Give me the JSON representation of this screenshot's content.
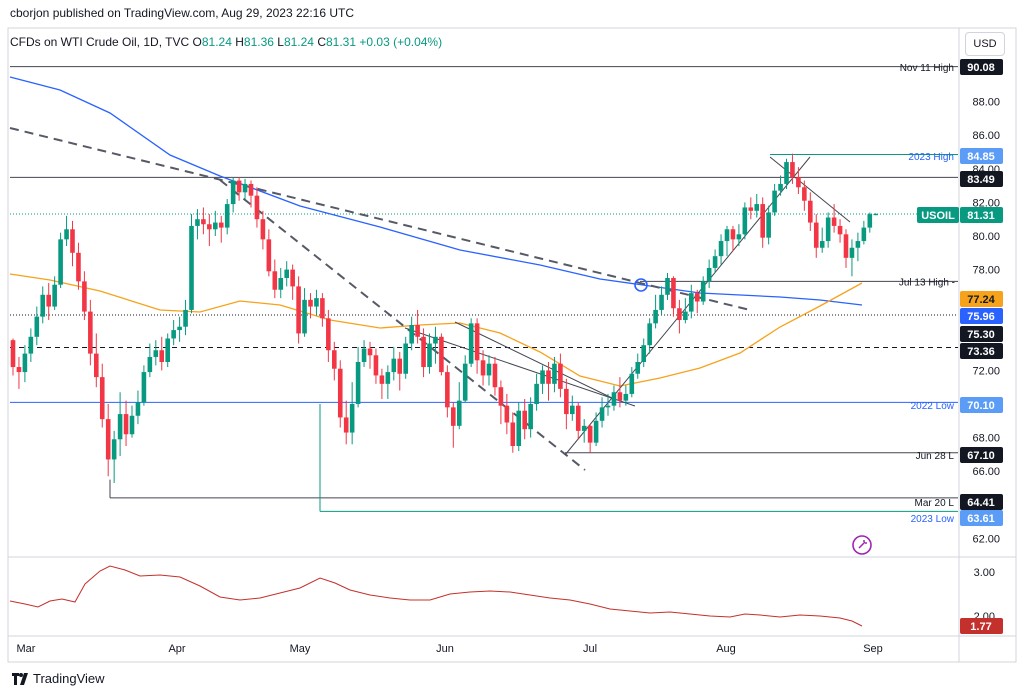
{
  "header": {
    "published": "cborjon published on TradingView.com, Aug 29, 2023 22:16 UTC",
    "symbol": "CFDs on WTI Crude Oil, 1D, TVC",
    "o_label": "O",
    "o_value": "81.24",
    "h_label": "H",
    "h_value": "81.36",
    "l_label": "L",
    "l_value": "81.24",
    "c_label": "C",
    "c_value": "81.31",
    "change": "+0.03 (+0.04%)",
    "currency": "USD"
  },
  "brand": {
    "name": "TradingView",
    "icon": "tradingview-logo-icon"
  },
  "colors": {
    "up": "#089981",
    "down": "#f23645",
    "sma200": "#2962ff",
    "sma50": "#f7a21b",
    "lower_indicator": "#c4302b",
    "trendline_dashed": "#555a66",
    "hline": "#434651"
  },
  "chart_data": {
    "type": "candlestick",
    "symbol": "USOIL",
    "x_months": [
      "Mar",
      "Apr",
      "May",
      "Jun",
      "Jul",
      "Aug",
      "Sep"
    ],
    "y_ticks": [
      "88.00",
      "86.00",
      "84.00",
      "82.00",
      "80.00",
      "78.00",
      "72.00",
      "68.00",
      "66.00",
      "62.00"
    ],
    "ylim": [
      61,
      91.5
    ],
    "last_price": "81.31",
    "price_badges": [
      {
        "value": "90.08",
        "label": "Nov 11 High",
        "kind": "level"
      },
      {
        "value": "84.85",
        "label": "2023 High",
        "kind": "blue"
      },
      {
        "value": "83.49",
        "label": "",
        "kind": "level"
      },
      {
        "value": "81.31",
        "label": "USOIL",
        "kind": "last"
      },
      {
        "value": "77.24",
        "label": "",
        "kind": "sma50"
      },
      {
        "value": "75.96",
        "label": "",
        "kind": "sma200"
      },
      {
        "value": "75.30",
        "label": "",
        "kind": "level"
      },
      {
        "value": "73.36",
        "label": "",
        "kind": "level"
      },
      {
        "value": "70.10",
        "label": "2022 Low",
        "kind": "blue"
      },
      {
        "value": "67.10",
        "label": "Jun 28 L",
        "kind": "level"
      },
      {
        "value": "64.41",
        "label": "Mar 20 L",
        "kind": "level"
      },
      {
        "value": "63.61",
        "label": "2023 Low",
        "kind": "blue"
      }
    ],
    "annotations": [
      {
        "label": "Jul 13 High -",
        "value": 77.3
      }
    ],
    "lower_indicator": {
      "ticks": [
        "3.00",
        "2.00"
      ],
      "last": "1.77"
    },
    "candles": [
      [
        73.8,
        72.2,
        73.9,
        71.7
      ],
      [
        72.2,
        71.9,
        72.8,
        70.9
      ],
      [
        71.9,
        73.0,
        73.5,
        71.3
      ],
      [
        73.0,
        74.0,
        74.5,
        72.5
      ],
      [
        74.0,
        75.2,
        75.8,
        73.5
      ],
      [
        75.2,
        76.5,
        77.0,
        74.8
      ],
      [
        76.5,
        75.8,
        77.2,
        75.0
      ],
      [
        75.8,
        77.1,
        77.6,
        75.6
      ],
      [
        77.1,
        79.8,
        80.2,
        76.9
      ],
      [
        79.8,
        80.4,
        81.2,
        79.4
      ],
      [
        80.4,
        79.0,
        80.9,
        78.2
      ],
      [
        79.0,
        77.3,
        79.6,
        76.8
      ],
      [
        77.3,
        75.5,
        77.9,
        75.0
      ],
      [
        75.5,
        73.0,
        76.2,
        72.3
      ],
      [
        73.0,
        71.6,
        74.2,
        71.0
      ],
      [
        71.6,
        69.1,
        72.4,
        68.6
      ],
      [
        69.1,
        66.7,
        70.0,
        65.7
      ],
      [
        66.7,
        67.9,
        68.4,
        65.3
      ],
      [
        67.9,
        69.4,
        70.7,
        66.9
      ],
      [
        69.4,
        68.2,
        70.2,
        67.5
      ],
      [
        68.2,
        69.3,
        69.9,
        68.0
      ],
      [
        69.3,
        70.1,
        70.8,
        68.8
      ],
      [
        70.1,
        71.9,
        72.3,
        69.9
      ],
      [
        71.9,
        72.8,
        73.6,
        71.6
      ],
      [
        72.8,
        73.2,
        73.8,
        72.3
      ],
      [
        73.2,
        72.5,
        74.0,
        72.0
      ],
      [
        72.5,
        73.9,
        74.2,
        72.2
      ],
      [
        73.9,
        74.4,
        75.0,
        73.5
      ],
      [
        74.4,
        74.6,
        75.2,
        73.7
      ],
      [
        74.6,
        75.6,
        76.2,
        74.1
      ],
      [
        75.6,
        80.6,
        81.3,
        75.4
      ],
      [
        80.6,
        81.0,
        81.6,
        79.8
      ],
      [
        81.0,
        80.7,
        81.7,
        80.1
      ],
      [
        80.7,
        80.4,
        81.3,
        79.4
      ],
      [
        80.4,
        80.8,
        81.5,
        80.0
      ],
      [
        80.8,
        80.5,
        81.2,
        79.6
      ],
      [
        80.5,
        81.9,
        82.2,
        80.1
      ],
      [
        81.9,
        83.3,
        83.5,
        81.4
      ],
      [
        83.3,
        82.6,
        83.5,
        82.1
      ],
      [
        82.6,
        83.1,
        83.4,
        82.2
      ],
      [
        83.1,
        82.4,
        83.3,
        81.7
      ],
      [
        82.4,
        81.0,
        82.9,
        80.5
      ],
      [
        81.0,
        79.8,
        81.5,
        79.2
      ],
      [
        79.8,
        77.9,
        80.4,
        77.6
      ],
      [
        77.9,
        76.8,
        78.6,
        76.3
      ],
      [
        76.8,
        77.5,
        78.1,
        76.3
      ],
      [
        77.5,
        78.0,
        78.5,
        77.0
      ],
      [
        78.0,
        77.0,
        78.3,
        76.2
      ],
      [
        77.0,
        74.2,
        77.6,
        73.6
      ],
      [
        74.2,
        76.2,
        76.9,
        74.0
      ],
      [
        76.2,
        75.8,
        76.6,
        75.1
      ],
      [
        75.8,
        76.3,
        76.8,
        75.3
      ],
      [
        76.3,
        75.1,
        76.6,
        74.6
      ],
      [
        75.1,
        73.2,
        75.6,
        72.5
      ],
      [
        73.2,
        72.1,
        73.7,
        71.4
      ],
      [
        72.1,
        69.2,
        72.6,
        68.6
      ],
      [
        69.2,
        68.3,
        70.2,
        67.6
      ],
      [
        68.3,
        70.0,
        71.3,
        67.6
      ],
      [
        70.0,
        72.5,
        73.4,
        69.8
      ],
      [
        72.5,
        73.3,
        73.8,
        72.2
      ],
      [
        73.3,
        72.9,
        73.7,
        72.1
      ],
      [
        72.9,
        71.7,
        73.3,
        71.2
      ],
      [
        71.7,
        71.2,
        72.1,
        70.3
      ],
      [
        71.2,
        71.9,
        72.3,
        70.3
      ],
      [
        71.9,
        72.7,
        73.4,
        71.4
      ],
      [
        72.7,
        71.8,
        73.1,
        70.8
      ],
      [
        71.8,
        73.6,
        74.0,
        71.5
      ],
      [
        73.6,
        74.7,
        75.2,
        73.2
      ],
      [
        74.7,
        74.0,
        75.6,
        73.6
      ],
      [
        74.0,
        72.2,
        74.5,
        71.6
      ],
      [
        72.2,
        73.6,
        74.2,
        71.8
      ],
      [
        73.6,
        74.0,
        74.6,
        72.4
      ],
      [
        74.0,
        71.9,
        74.2,
        71.7
      ],
      [
        71.9,
        69.8,
        72.3,
        69.2
      ],
      [
        69.8,
        68.7,
        70.1,
        67.4
      ],
      [
        68.7,
        70.2,
        71.3,
        68.5
      ],
      [
        70.2,
        72.4,
        72.9,
        70.1
      ],
      [
        72.4,
        74.8,
        75.1,
        72.2
      ],
      [
        74.8,
        72.6,
        75.1,
        71.8
      ],
      [
        72.6,
        71.7,
        73.2,
        71.1
      ],
      [
        71.7,
        72.4,
        72.9,
        71.1
      ],
      [
        72.4,
        71.0,
        72.8,
        70.5
      ],
      [
        71.0,
        69.9,
        71.4,
        68.8
      ],
      [
        69.9,
        68.9,
        70.6,
        68.2
      ],
      [
        68.9,
        67.5,
        69.5,
        67.1
      ],
      [
        67.5,
        69.6,
        70.1,
        67.2
      ],
      [
        69.6,
        68.5,
        70.3,
        67.9
      ],
      [
        68.5,
        70.0,
        70.4,
        68.0
      ],
      [
        70.0,
        71.2,
        71.8,
        69.6
      ],
      [
        71.2,
        72.0,
        72.3,
        70.6
      ],
      [
        72.0,
        71.2,
        72.5,
        70.2
      ],
      [
        71.2,
        72.4,
        72.8,
        70.7
      ],
      [
        72.4,
        70.9,
        73.0,
        70.4
      ],
      [
        70.9,
        69.4,
        71.5,
        68.5
      ],
      [
        69.4,
        69.9,
        70.5,
        69.0
      ],
      [
        69.9,
        68.4,
        70.1,
        67.9
      ],
      [
        68.4,
        68.7,
        69.1,
        67.7
      ],
      [
        68.7,
        67.7,
        68.8,
        67.1
      ],
      [
        67.7,
        69.0,
        69.5,
        67.5
      ],
      [
        69.0,
        69.8,
        70.4,
        68.6
      ],
      [
        69.8,
        69.9,
        70.6,
        69.3
      ],
      [
        69.9,
        70.7,
        71.1,
        69.6
      ],
      [
        70.7,
        70.2,
        71.6,
        69.8
      ],
      [
        70.2,
        70.6,
        71.1,
        69.9
      ],
      [
        70.6,
        71.8,
        72.2,
        70.4
      ],
      [
        71.8,
        72.5,
        73.0,
        71.5
      ],
      [
        72.5,
        73.5,
        73.9,
        72.2
      ],
      [
        73.5,
        74.8,
        75.1,
        73.0
      ],
      [
        74.8,
        75.6,
        76.5,
        74.5
      ],
      [
        75.6,
        76.5,
        77.0,
        75.3
      ],
      [
        76.5,
        77.5,
        77.8,
        76.2
      ],
      [
        77.5,
        75.7,
        77.6,
        75.2
      ],
      [
        75.7,
        75.0,
        76.2,
        74.2
      ],
      [
        75.0,
        75.5,
        76.3,
        74.8
      ],
      [
        75.5,
        76.6,
        77.1,
        75.1
      ],
      [
        76.6,
        76.1,
        76.8,
        75.4
      ],
      [
        76.1,
        77.3,
        77.6,
        75.9
      ],
      [
        77.3,
        78.1,
        78.6,
        76.9
      ],
      [
        78.1,
        78.8,
        79.2,
        77.8
      ],
      [
        78.8,
        79.7,
        80.1,
        78.3
      ],
      [
        79.7,
        80.4,
        80.6,
        78.8
      ],
      [
        80.4,
        79.8,
        80.6,
        79.1
      ],
      [
        79.8,
        80.1,
        80.7,
        79.4
      ],
      [
        80.1,
        81.7,
        82.0,
        79.8
      ],
      [
        81.7,
        81.5,
        82.3,
        81.0
      ],
      [
        81.5,
        81.9,
        82.5,
        81.1
      ],
      [
        81.9,
        79.9,
        82.3,
        79.3
      ],
      [
        79.9,
        81.4,
        81.8,
        79.5
      ],
      [
        81.4,
        82.7,
        83.1,
        81.2
      ],
      [
        82.7,
        83.1,
        83.6,
        82.4
      ],
      [
        83.1,
        84.4,
        84.6,
        82.8
      ],
      [
        84.4,
        83.5,
        84.9,
        83.1
      ],
      [
        83.5,
        82.9,
        84.1,
        82.5
      ],
      [
        82.9,
        82.1,
        83.3,
        81.5
      ],
      [
        82.1,
        80.8,
        82.6,
        80.3
      ],
      [
        80.8,
        79.3,
        81.3,
        78.7
      ],
      [
        79.3,
        79.7,
        80.5,
        79.0
      ],
      [
        79.7,
        81.1,
        81.4,
        79.3
      ],
      [
        81.1,
        80.6,
        81.9,
        80.2
      ],
      [
        80.6,
        80.1,
        81.0,
        79.6
      ],
      [
        80.1,
        78.7,
        80.4,
        78.1
      ],
      [
        78.7,
        79.3,
        79.8,
        77.6
      ],
      [
        79.3,
        79.7,
        80.2,
        78.5
      ],
      [
        79.7,
        80.5,
        80.9,
        79.5
      ],
      [
        80.5,
        81.3,
        81.4,
        80.2
      ],
      [
        81.24,
        81.31,
        81.36,
        81.24
      ]
    ]
  }
}
